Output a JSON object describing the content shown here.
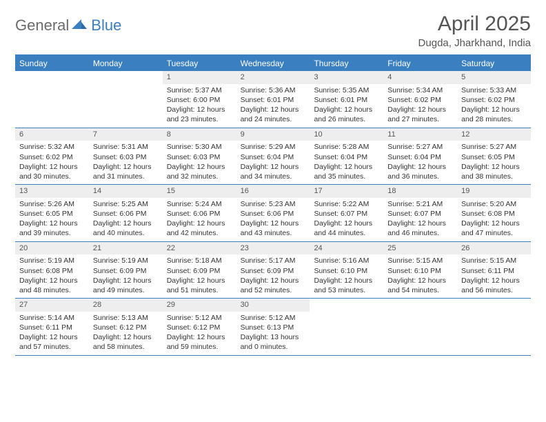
{
  "brand": {
    "part1": "General",
    "part2": "Blue"
  },
  "title": "April 2025",
  "location": "Dugda, Jharkhand, India",
  "colors": {
    "accent": "#3a7fc0",
    "daynum_bg": "#eeeeee",
    "text": "#333333",
    "muted": "#555555",
    "logo_gray": "#6b6b6b"
  },
  "days_of_week": [
    "Sunday",
    "Monday",
    "Tuesday",
    "Wednesday",
    "Thursday",
    "Friday",
    "Saturday"
  ],
  "weeks": [
    [
      null,
      null,
      {
        "n": "1",
        "sr": "5:37 AM",
        "ss": "6:00 PM",
        "dl": "12 hours and 23 minutes."
      },
      {
        "n": "2",
        "sr": "5:36 AM",
        "ss": "6:01 PM",
        "dl": "12 hours and 24 minutes."
      },
      {
        "n": "3",
        "sr": "5:35 AM",
        "ss": "6:01 PM",
        "dl": "12 hours and 26 minutes."
      },
      {
        "n": "4",
        "sr": "5:34 AM",
        "ss": "6:02 PM",
        "dl": "12 hours and 27 minutes."
      },
      {
        "n": "5",
        "sr": "5:33 AM",
        "ss": "6:02 PM",
        "dl": "12 hours and 28 minutes."
      }
    ],
    [
      {
        "n": "6",
        "sr": "5:32 AM",
        "ss": "6:02 PM",
        "dl": "12 hours and 30 minutes."
      },
      {
        "n": "7",
        "sr": "5:31 AM",
        "ss": "6:03 PM",
        "dl": "12 hours and 31 minutes."
      },
      {
        "n": "8",
        "sr": "5:30 AM",
        "ss": "6:03 PM",
        "dl": "12 hours and 32 minutes."
      },
      {
        "n": "9",
        "sr": "5:29 AM",
        "ss": "6:04 PM",
        "dl": "12 hours and 34 minutes."
      },
      {
        "n": "10",
        "sr": "5:28 AM",
        "ss": "6:04 PM",
        "dl": "12 hours and 35 minutes."
      },
      {
        "n": "11",
        "sr": "5:27 AM",
        "ss": "6:04 PM",
        "dl": "12 hours and 36 minutes."
      },
      {
        "n": "12",
        "sr": "5:27 AM",
        "ss": "6:05 PM",
        "dl": "12 hours and 38 minutes."
      }
    ],
    [
      {
        "n": "13",
        "sr": "5:26 AM",
        "ss": "6:05 PM",
        "dl": "12 hours and 39 minutes."
      },
      {
        "n": "14",
        "sr": "5:25 AM",
        "ss": "6:06 PM",
        "dl": "12 hours and 40 minutes."
      },
      {
        "n": "15",
        "sr": "5:24 AM",
        "ss": "6:06 PM",
        "dl": "12 hours and 42 minutes."
      },
      {
        "n": "16",
        "sr": "5:23 AM",
        "ss": "6:06 PM",
        "dl": "12 hours and 43 minutes."
      },
      {
        "n": "17",
        "sr": "5:22 AM",
        "ss": "6:07 PM",
        "dl": "12 hours and 44 minutes."
      },
      {
        "n": "18",
        "sr": "5:21 AM",
        "ss": "6:07 PM",
        "dl": "12 hours and 46 minutes."
      },
      {
        "n": "19",
        "sr": "5:20 AM",
        "ss": "6:08 PM",
        "dl": "12 hours and 47 minutes."
      }
    ],
    [
      {
        "n": "20",
        "sr": "5:19 AM",
        "ss": "6:08 PM",
        "dl": "12 hours and 48 minutes."
      },
      {
        "n": "21",
        "sr": "5:19 AM",
        "ss": "6:09 PM",
        "dl": "12 hours and 49 minutes."
      },
      {
        "n": "22",
        "sr": "5:18 AM",
        "ss": "6:09 PM",
        "dl": "12 hours and 51 minutes."
      },
      {
        "n": "23",
        "sr": "5:17 AM",
        "ss": "6:09 PM",
        "dl": "12 hours and 52 minutes."
      },
      {
        "n": "24",
        "sr": "5:16 AM",
        "ss": "6:10 PM",
        "dl": "12 hours and 53 minutes."
      },
      {
        "n": "25",
        "sr": "5:15 AM",
        "ss": "6:10 PM",
        "dl": "12 hours and 54 minutes."
      },
      {
        "n": "26",
        "sr": "5:15 AM",
        "ss": "6:11 PM",
        "dl": "12 hours and 56 minutes."
      }
    ],
    [
      {
        "n": "27",
        "sr": "5:14 AM",
        "ss": "6:11 PM",
        "dl": "12 hours and 57 minutes."
      },
      {
        "n": "28",
        "sr": "5:13 AM",
        "ss": "6:12 PM",
        "dl": "12 hours and 58 minutes."
      },
      {
        "n": "29",
        "sr": "5:12 AM",
        "ss": "6:12 PM",
        "dl": "12 hours and 59 minutes."
      },
      {
        "n": "30",
        "sr": "5:12 AM",
        "ss": "6:13 PM",
        "dl": "13 hours and 0 minutes."
      },
      null,
      null,
      null
    ]
  ],
  "labels": {
    "sunrise": "Sunrise: ",
    "sunset": "Sunset: ",
    "daylight": "Daylight: "
  }
}
